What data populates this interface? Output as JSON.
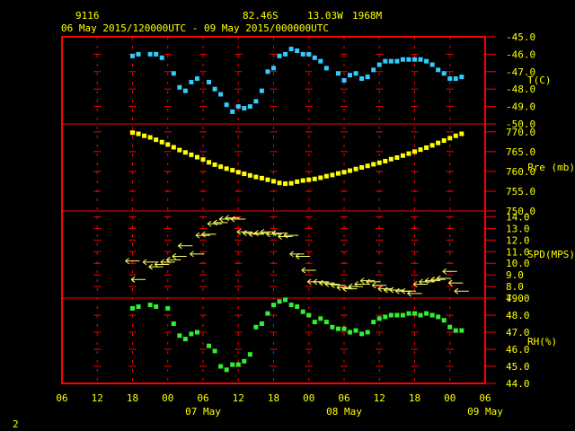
{
  "header": {
    "station": "9116",
    "lat": "82.46S",
    "lon": "13.03W",
    "elev": "1968M",
    "range": "06 May 2015/120000UTC - 09 May 2015/000000UTC"
  },
  "footer": {
    "page": "2"
  },
  "colors": {
    "frame": "#ff0000",
    "text": "#ffff00",
    "temp": "#33ccff",
    "pres": "#ffff00",
    "wind": "#ffff66",
    "rh": "#33ee33"
  },
  "chart_data": {
    "type": "scatter",
    "x_unit": "hour since 06 May 00UTC",
    "x_range": [
      0,
      72
    ],
    "x_ticks": [
      "06",
      "12",
      "18",
      "00",
      "06",
      "12",
      "18",
      "00",
      "06",
      "12",
      "18",
      "00",
      "06"
    ],
    "date_labels": [
      "07 May",
      "08 May",
      "09 May"
    ],
    "panels": [
      {
        "name": "T(C)",
        "label": "T(C)",
        "ylim": [
          -50.0,
          -45.0
        ],
        "y_ticks": [
          "-45.0",
          "-46.0",
          "-47.0",
          "-48.0",
          "-49.0",
          "-50.0"
        ],
        "points": [
          [
            12,
            -46.1
          ],
          [
            13,
            -46.0
          ],
          [
            15,
            -46.0
          ],
          [
            16,
            -46.0
          ],
          [
            17,
            -46.2
          ],
          [
            19,
            -47.1
          ],
          [
            20,
            -47.9
          ],
          [
            21,
            -48.1
          ],
          [
            22,
            -47.6
          ],
          [
            23,
            -47.4
          ],
          [
            25,
            -47.6
          ],
          [
            26,
            -48.0
          ],
          [
            27,
            -48.3
          ],
          [
            28,
            -48.9
          ],
          [
            29,
            -49.3
          ],
          [
            30,
            -49.0
          ],
          [
            31,
            -49.1
          ],
          [
            32,
            -49.0
          ],
          [
            33,
            -48.7
          ],
          [
            34,
            -48.1
          ],
          [
            35,
            -47.0
          ],
          [
            36,
            -46.8
          ],
          [
            37,
            -46.1
          ],
          [
            38,
            -46.0
          ],
          [
            39,
            -45.7
          ],
          [
            40,
            -45.8
          ],
          [
            41,
            -46.0
          ],
          [
            42,
            -46.0
          ],
          [
            43,
            -46.2
          ],
          [
            44,
            -46.4
          ],
          [
            45,
            -46.8
          ],
          [
            47,
            -47.1
          ],
          [
            48,
            -47.5
          ],
          [
            49,
            -47.2
          ],
          [
            50,
            -47.1
          ],
          [
            51,
            -47.4
          ],
          [
            52,
            -47.3
          ],
          [
            53,
            -46.9
          ],
          [
            54,
            -46.6
          ],
          [
            55,
            -46.4
          ],
          [
            56,
            -46.4
          ],
          [
            57,
            -46.4
          ],
          [
            58,
            -46.3
          ],
          [
            59,
            -46.3
          ],
          [
            60,
            -46.3
          ],
          [
            61,
            -46.3
          ],
          [
            62,
            -46.4
          ],
          [
            63,
            -46.6
          ],
          [
            64,
            -46.9
          ],
          [
            65,
            -47.1
          ],
          [
            66,
            -47.4
          ],
          [
            67,
            -47.4
          ],
          [
            68,
            -47.3
          ]
        ]
      },
      {
        "name": "Pre (mb)",
        "label": "Pre (mb)",
        "ylim": [
          750.0,
          772.0
        ],
        "y_ticks": [
          "770.0",
          "765.0",
          "760.0",
          "755.0",
          "750.0"
        ],
        "points": [
          [
            12,
            769.8
          ],
          [
            13,
            769.5
          ],
          [
            14,
            769.0
          ],
          [
            15,
            768.6
          ],
          [
            16,
            768.0
          ],
          [
            17,
            767.4
          ],
          [
            18,
            766.8
          ],
          [
            19,
            766.1
          ],
          [
            20,
            765.4
          ],
          [
            21,
            764.8
          ],
          [
            22,
            764.2
          ],
          [
            23,
            763.6
          ],
          [
            24,
            763.0
          ],
          [
            25,
            762.3
          ],
          [
            26,
            761.7
          ],
          [
            27,
            761.2
          ],
          [
            28,
            760.7
          ],
          [
            29,
            760.3
          ],
          [
            30,
            759.8
          ],
          [
            31,
            759.4
          ],
          [
            32,
            759.0
          ],
          [
            33,
            758.6
          ],
          [
            34,
            758.3
          ],
          [
            35,
            757.9
          ],
          [
            36,
            757.5
          ],
          [
            37,
            757.1
          ],
          [
            38,
            756.9
          ],
          [
            39,
            757.0
          ],
          [
            40,
            757.4
          ],
          [
            41,
            757.7
          ],
          [
            42,
            757.9
          ],
          [
            43,
            758.1
          ],
          [
            44,
            758.4
          ],
          [
            45,
            758.8
          ],
          [
            46,
            759.1
          ],
          [
            47,
            759.5
          ],
          [
            48,
            759.8
          ],
          [
            49,
            760.2
          ],
          [
            50,
            760.6
          ],
          [
            51,
            761.0
          ],
          [
            52,
            761.4
          ],
          [
            53,
            761.8
          ],
          [
            54,
            762.2
          ],
          [
            55,
            762.6
          ],
          [
            56,
            763.1
          ],
          [
            57,
            763.5
          ],
          [
            58,
            764.0
          ],
          [
            59,
            764.5
          ],
          [
            60,
            765.0
          ],
          [
            61,
            765.5
          ],
          [
            62,
            766.0
          ],
          [
            63,
            766.6
          ],
          [
            64,
            767.2
          ],
          [
            65,
            767.8
          ],
          [
            66,
            768.4
          ],
          [
            67,
            769.0
          ],
          [
            68,
            769.5
          ]
        ]
      },
      {
        "name": "SPD(MPS)",
        "label": "SPD(MPS)",
        "ylim": [
          7.0,
          14.5
        ],
        "y_ticks": [
          "14.0",
          "13.0",
          "12.0",
          "11.0",
          "10.0",
          "9.0",
          "8.0",
          "7.0"
        ],
        "points": [
          [
            12,
            10.2
          ],
          [
            13,
            8.6
          ],
          [
            15,
            10.1
          ],
          [
            16,
            9.7
          ],
          [
            17,
            9.9
          ],
          [
            18,
            10.1
          ],
          [
            19,
            10.3
          ],
          [
            20,
            10.6
          ],
          [
            21,
            11.5
          ],
          [
            23,
            10.8
          ],
          [
            24,
            12.4
          ],
          [
            25,
            12.5
          ],
          [
            26,
            13.4
          ],
          [
            27,
            13.5
          ],
          [
            28,
            13.8
          ],
          [
            29,
            13.9
          ],
          [
            30,
            13.8
          ],
          [
            31,
            12.7
          ],
          [
            32,
            12.6
          ],
          [
            33,
            12.5
          ],
          [
            34,
            12.6
          ],
          [
            35,
            12.7
          ],
          [
            36,
            12.5
          ],
          [
            37,
            12.6
          ],
          [
            38,
            12.3
          ],
          [
            39,
            12.4
          ],
          [
            40,
            10.8
          ],
          [
            41,
            10.6
          ],
          [
            42,
            9.4
          ],
          [
            43,
            8.4
          ],
          [
            44,
            8.4
          ],
          [
            45,
            8.3
          ],
          [
            46,
            8.2
          ],
          [
            47,
            8.1
          ],
          [
            48,
            7.9
          ],
          [
            49,
            7.8
          ],
          [
            50,
            8.0
          ],
          [
            51,
            8.2
          ],
          [
            52,
            8.5
          ],
          [
            53,
            8.4
          ],
          [
            54,
            8.1
          ],
          [
            55,
            7.8
          ],
          [
            56,
            7.7
          ],
          [
            57,
            7.7
          ],
          [
            58,
            7.6
          ],
          [
            59,
            7.6
          ],
          [
            60,
            7.4
          ],
          [
            61,
            8.2
          ],
          [
            62,
            8.4
          ],
          [
            63,
            8.5
          ],
          [
            64,
            8.6
          ],
          [
            65,
            8.7
          ],
          [
            66,
            9.3
          ],
          [
            67,
            8.3
          ],
          [
            68,
            7.6
          ]
        ]
      },
      {
        "name": "RH(%)",
        "label": "RH(%)",
        "ylim": [
          44.0,
          49.0
        ],
        "y_ticks": [
          "49.0",
          "48.0",
          "47.0",
          "46.0",
          "45.0",
          "44.0"
        ],
        "points": [
          [
            12,
            48.4
          ],
          [
            13,
            48.5
          ],
          [
            15,
            48.6
          ],
          [
            16,
            48.5
          ],
          [
            18,
            48.4
          ],
          [
            19,
            47.5
          ],
          [
            20,
            46.8
          ],
          [
            21,
            46.6
          ],
          [
            22,
            46.9
          ],
          [
            23,
            47.0
          ],
          [
            25,
            46.2
          ],
          [
            26,
            45.9
          ],
          [
            27,
            45.0
          ],
          [
            28,
            44.8
          ],
          [
            29,
            45.1
          ],
          [
            30,
            45.1
          ],
          [
            31,
            45.3
          ],
          [
            32,
            45.7
          ],
          [
            33,
            47.3
          ],
          [
            34,
            47.5
          ],
          [
            35,
            48.1
          ],
          [
            36,
            48.6
          ],
          [
            37,
            48.8
          ],
          [
            38,
            48.9
          ],
          [
            39,
            48.6
          ],
          [
            40,
            48.5
          ],
          [
            41,
            48.2
          ],
          [
            42,
            48.0
          ],
          [
            43,
            47.6
          ],
          [
            44,
            47.8
          ],
          [
            45,
            47.6
          ],
          [
            46,
            47.3
          ],
          [
            47,
            47.2
          ],
          [
            48,
            47.2
          ],
          [
            49,
            47.0
          ],
          [
            50,
            47.1
          ],
          [
            51,
            46.9
          ],
          [
            52,
            47.0
          ],
          [
            53,
            47.6
          ],
          [
            54,
            47.8
          ],
          [
            55,
            47.9
          ],
          [
            56,
            48.0
          ],
          [
            57,
            48.0
          ],
          [
            58,
            48.0
          ],
          [
            59,
            48.1
          ],
          [
            60,
            48.1
          ],
          [
            61,
            48.0
          ],
          [
            62,
            48.1
          ],
          [
            63,
            48.0
          ],
          [
            64,
            47.9
          ],
          [
            65,
            47.7
          ],
          [
            66,
            47.3
          ],
          [
            67,
            47.1
          ],
          [
            68,
            47.1
          ]
        ]
      }
    ]
  }
}
